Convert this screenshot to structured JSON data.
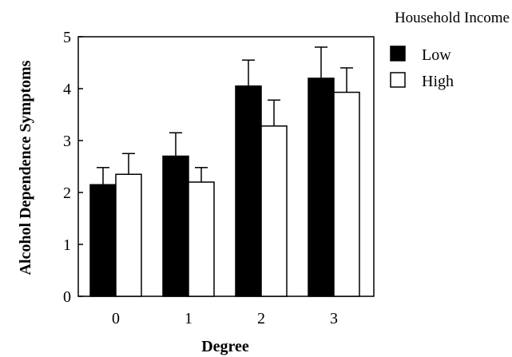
{
  "chart_data": {
    "type": "bar",
    "title": "",
    "xlabel": "Degree",
    "ylabel": "Alcohol Dependence Symptoms",
    "categories": [
      "0",
      "1",
      "2",
      "3"
    ],
    "ylim": [
      0,
      5
    ],
    "yticks": [
      "0",
      "1",
      "2",
      "3",
      "4",
      "5"
    ],
    "legend_title": "Household Income",
    "legend_position": "right",
    "error_bars": "upper",
    "series": [
      {
        "name": "Low",
        "color": "#000000",
        "values": [
          2.15,
          2.7,
          4.05,
          4.2
        ],
        "errors": [
          0.33,
          0.45,
          0.5,
          0.6
        ]
      },
      {
        "name": "High",
        "color": "#ffffff",
        "values": [
          2.35,
          2.2,
          3.28,
          3.93
        ],
        "errors": [
          0.4,
          0.28,
          0.5,
          0.47
        ]
      }
    ]
  }
}
